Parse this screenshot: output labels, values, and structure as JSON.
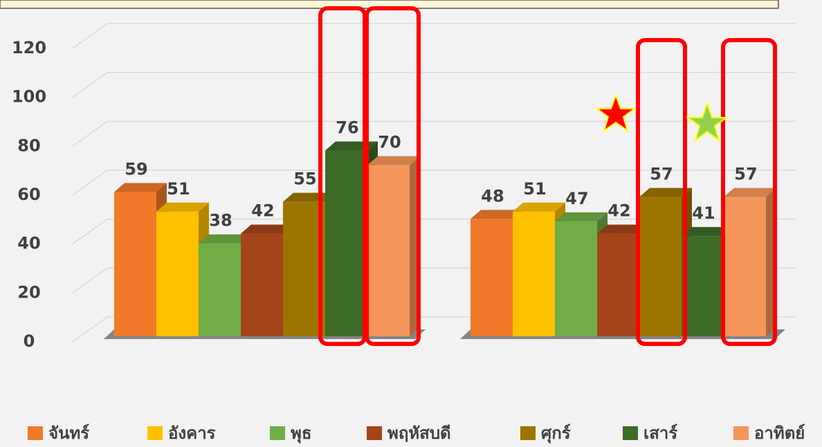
{
  "chart_data": {
    "type": "bar",
    "categories": [
      null,
      null
    ],
    "series": [
      {
        "name": "จันทร์",
        "color": "#f07a2a",
        "values": [
          59,
          48
        ]
      },
      {
        "name": "อังคาร",
        "color": "#ffc000",
        "values": [
          51,
          51
        ]
      },
      {
        "name": "พุธ",
        "color": "#70ad47",
        "values": [
          38,
          47
        ]
      },
      {
        "name": "พฤหัสบดี",
        "color": "#a5441a",
        "values": [
          42,
          42
        ]
      },
      {
        "name": "ศุกร์",
        "color": "#9c7400",
        "values": [
          55,
          57
        ]
      },
      {
        "name": "เสาร์",
        "color": "#3d6b28",
        "values": [
          76,
          41
        ]
      },
      {
        "name": "อาทิตย์",
        "color": "#f4965a",
        "values": [
          70,
          57
        ]
      }
    ],
    "ylim": [
      0,
      120
    ],
    "yticks": [
      0,
      20,
      40,
      60,
      80,
      100,
      120
    ],
    "grid": true,
    "legend": "bottom"
  }
}
